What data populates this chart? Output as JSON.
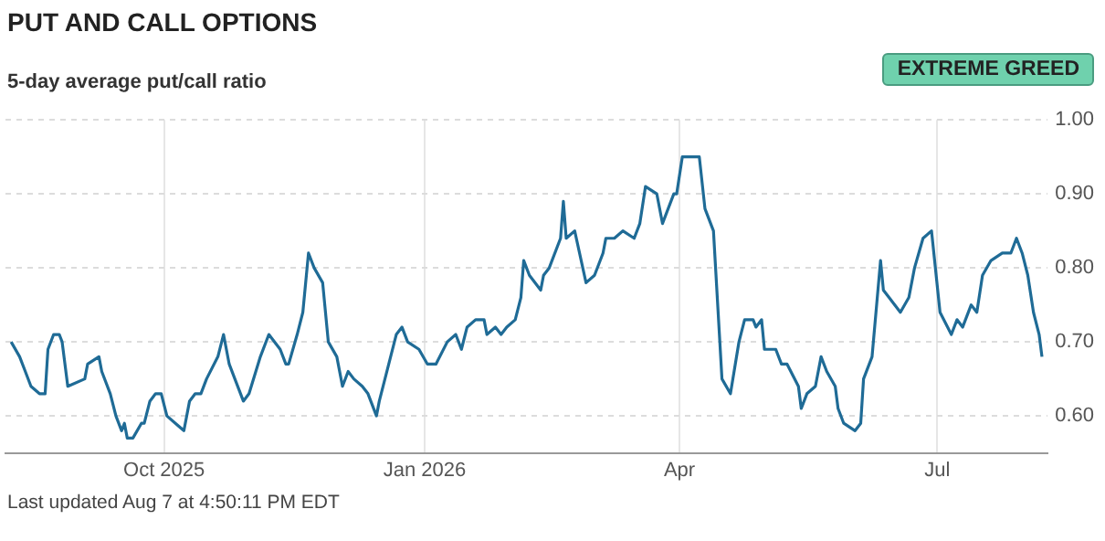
{
  "chart_data": {
    "type": "line",
    "title": "PUT AND CALL OPTIONS",
    "subtitle": "5-day average put/call ratio",
    "annotations": [
      "EXTREME GREED",
      "Last updated Aug 7 at 4:50:11 PM EDT"
    ],
    "x": [
      "2025-08-08",
      "2025-08-11",
      "2025-08-13",
      "2025-08-15",
      "2025-08-18",
      "2025-08-20",
      "2025-08-21",
      "2025-08-23",
      "2025-08-25",
      "2025-08-26",
      "2025-08-28",
      "2025-09-03",
      "2025-09-04",
      "2025-09-08",
      "2025-09-09",
      "2025-09-12",
      "2025-09-14",
      "2025-09-16",
      "2025-09-17",
      "2025-09-18",
      "2025-09-20",
      "2025-09-23",
      "2025-09-24",
      "2025-09-26",
      "2025-09-28",
      "2025-09-30",
      "2025-10-02",
      "2025-10-05",
      "2025-10-08",
      "2025-10-10",
      "2025-10-12",
      "2025-10-14",
      "2025-10-16",
      "2025-10-20",
      "2025-10-22",
      "2025-10-24",
      "2025-10-26",
      "2025-10-29",
      "2025-10-31",
      "2025-11-04",
      "2025-11-07",
      "2025-11-11",
      "2025-11-13",
      "2025-11-14",
      "2025-11-17",
      "2025-11-19",
      "2025-11-21",
      "2025-11-23",
      "2025-11-26",
      "2025-11-28",
      "2025-12-01",
      "2025-12-03",
      "2025-12-05",
      "2025-12-07",
      "2025-12-10",
      "2025-12-12",
      "2025-12-15",
      "2025-12-16",
      "2025-12-18",
      "2025-12-20",
      "2025-12-22",
      "2025-12-24",
      "2025-12-26",
      "2025-12-30",
      "2026-01-02",
      "2026-01-05",
      "2026-01-09",
      "2026-01-12",
      "2026-01-14",
      "2026-01-16",
      "2026-01-19",
      "2026-01-22",
      "2026-01-23",
      "2026-01-26",
      "2026-01-28",
      "2026-01-30",
      "2026-02-02",
      "2026-02-04",
      "2026-02-05",
      "2026-02-07",
      "2026-02-11",
      "2026-02-12",
      "2026-02-14",
      "2026-02-18",
      "2026-02-19",
      "2026-02-20",
      "2026-02-23",
      "2026-02-27",
      "2026-03-02",
      "2026-03-05",
      "2026-03-06",
      "2026-03-09",
      "2026-03-12",
      "2026-03-16",
      "2026-03-18",
      "2026-03-20",
      "2026-03-24",
      "2026-03-26",
      "2026-03-30",
      "2026-03-31",
      "2026-04-02",
      "2026-04-05",
      "2026-04-08",
      "2026-04-10",
      "2026-04-13",
      "2026-04-16",
      "2026-04-19",
      "2026-04-22",
      "2026-04-24",
      "2026-04-27",
      "2026-04-28",
      "2026-04-30",
      "2026-05-01",
      "2026-05-05",
      "2026-05-07",
      "2026-05-09",
      "2026-05-13",
      "2026-05-14",
      "2026-05-16",
      "2026-05-19",
      "2026-05-21",
      "2026-05-23",
      "2026-05-26",
      "2026-05-27",
      "2026-05-29",
      "2026-06-02",
      "2026-06-04",
      "2026-06-05",
      "2026-06-08",
      "2026-06-11",
      "2026-06-12",
      "2026-06-14",
      "2026-06-18",
      "2026-06-21",
      "2026-06-23",
      "2026-06-26",
      "2026-06-29",
      "2026-07-02",
      "2026-07-06",
      "2026-07-08",
      "2026-07-10",
      "2026-07-13",
      "2026-07-15",
      "2026-07-17",
      "2026-07-20",
      "2026-07-24",
      "2026-07-27",
      "2026-07-29",
      "2026-07-31",
      "2026-08-02",
      "2026-08-04",
      "2026-08-06",
      "2026-08-07"
    ],
    "series": [
      {
        "color": "#1f6b96",
        "values": [
          0.7,
          0.68,
          0.66,
          0.64,
          0.63,
          0.63,
          0.69,
          0.71,
          0.71,
          0.7,
          0.64,
          0.65,
          0.67,
          0.68,
          0.66,
          0.63,
          0.6,
          0.58,
          0.59,
          0.57,
          0.57,
          0.59,
          0.59,
          0.62,
          0.63,
          0.63,
          0.6,
          0.59,
          0.58,
          0.62,
          0.63,
          0.63,
          0.65,
          0.68,
          0.71,
          0.67,
          0.65,
          0.62,
          0.63,
          0.68,
          0.71,
          0.69,
          0.67,
          0.67,
          0.71,
          0.74,
          0.82,
          0.8,
          0.78,
          0.7,
          0.68,
          0.64,
          0.66,
          0.65,
          0.64,
          0.63,
          0.6,
          0.62,
          0.65,
          0.68,
          0.71,
          0.72,
          0.7,
          0.69,
          0.67,
          0.67,
          0.7,
          0.71,
          0.69,
          0.72,
          0.73,
          0.73,
          0.71,
          0.72,
          0.71,
          0.72,
          0.73,
          0.76,
          0.81,
          0.79,
          0.77,
          0.79,
          0.8,
          0.84,
          0.89,
          0.84,
          0.85,
          0.78,
          0.79,
          0.82,
          0.84,
          0.84,
          0.85,
          0.84,
          0.86,
          0.91,
          0.9,
          0.86,
          0.9,
          0.9,
          0.95,
          0.95,
          0.95,
          0.88,
          0.85,
          0.65,
          0.63,
          0.7,
          0.73,
          0.73,
          0.72,
          0.73,
          0.69,
          0.69,
          0.67,
          0.67,
          0.64,
          0.61,
          0.63,
          0.64,
          0.68,
          0.66,
          0.64,
          0.61,
          0.59,
          0.58,
          0.59,
          0.65,
          0.68,
          0.81,
          0.77,
          0.76,
          0.74,
          0.76,
          0.8,
          0.84,
          0.85,
          0.74,
          0.71,
          0.73,
          0.72,
          0.75,
          0.74,
          0.79,
          0.81,
          0.82,
          0.82,
          0.84,
          0.82,
          0.79,
          0.74,
          0.71,
          0.68
        ]
      }
    ],
    "xlim": [
      "2025-08-06",
      "2026-08-09"
    ],
    "xticks": [
      {
        "value": "2025-10-01",
        "label": "Oct 2025"
      },
      {
        "value": "2026-01-01",
        "label": "Jan 2026"
      },
      {
        "value": "2026-04-01",
        "label": "Apr"
      },
      {
        "value": "2026-07-01",
        "label": "Jul"
      }
    ],
    "ylim": [
      0.55,
      1.0
    ],
    "yticks": [
      {
        "value": 0.6,
        "label": "0.60"
      },
      {
        "value": 0.7,
        "label": "0.70"
      },
      {
        "value": 0.8,
        "label": "0.80"
      },
      {
        "value": 0.9,
        "label": "0.90"
      },
      {
        "value": 1.0,
        "label": "1.00"
      }
    ],
    "grid": true,
    "legend": false,
    "marker": "none",
    "line_style": "solid"
  }
}
